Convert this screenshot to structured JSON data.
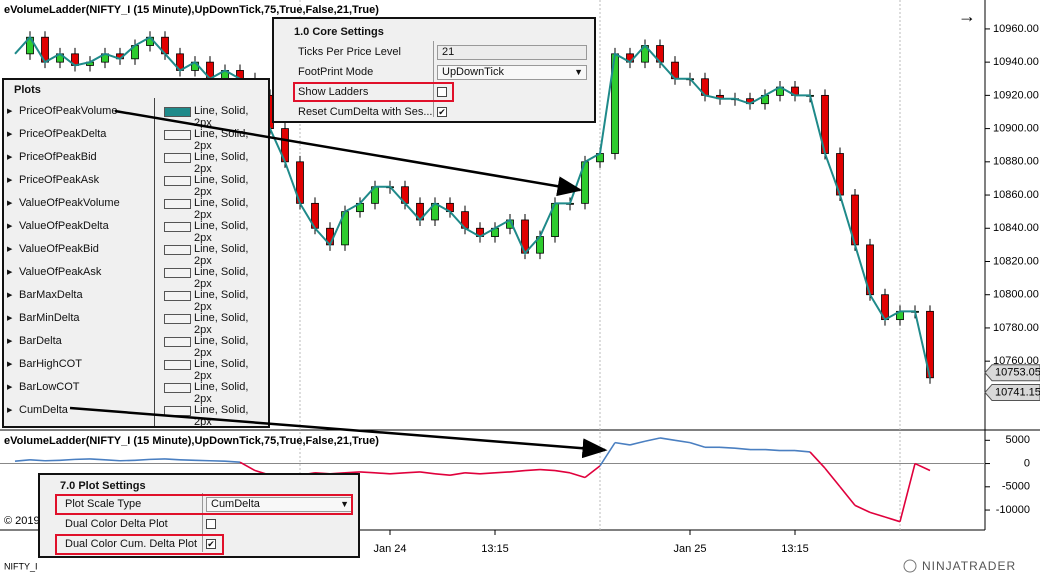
{
  "chart_data": {
    "type": "candlestick",
    "title": "eVolumeLadder(NIFTY_I (15 Minute),UpDownTick,75,True,False,21,True)",
    "categories": [
      null,
      null,
      null,
      null,
      null,
      null,
      null,
      null,
      null,
      null,
      null,
      null,
      null,
      null,
      null,
      null,
      null,
      null,
      null,
      null,
      null,
      null,
      null,
      null,
      null,
      "Jan 24",
      null,
      null,
      null,
      null,
      null,
      null,
      "13:15",
      null,
      null,
      null,
      null,
      null,
      null,
      null,
      null,
      null,
      null,
      null,
      null,
      "Jan 25",
      null,
      null,
      null,
      null,
      null,
      null,
      "13:15",
      null,
      null,
      null,
      null,
      null,
      null,
      null,
      null,
      null
    ],
    "close": [
      10945,
      10955,
      10940,
      10945,
      10938,
      10940,
      10945,
      10942,
      10950,
      10955,
      10945,
      10935,
      10940,
      10930,
      10935,
      10930,
      10920,
      10900,
      10880,
      10855,
      10840,
      10830,
      10850,
      10855,
      10865,
      10865,
      10855,
      10845,
      10855,
      10850,
      10840,
      10835,
      10840,
      10845,
      10825,
      10835,
      10855,
      10855,
      10880,
      10885,
      10945,
      10940,
      10950,
      10940,
      10930,
      10930,
      10920,
      10918,
      10918,
      10915,
      10920,
      10925,
      10920,
      10920,
      10885,
      10860,
      10830,
      10800,
      10785,
      10790,
      10790,
      10750
    ],
    "line_color": "#1f8a8a",
    "up_color": "#2ecc2e",
    "down_color": "#e00000",
    "ylim": [
      10730,
      10975
    ],
    "yticks": [
      {
        "value": 10960,
        "label": "10960.00"
      },
      {
        "value": 10940,
        "label": "10940.00"
      },
      {
        "value": 10920,
        "label": "10920.00"
      },
      {
        "value": 10900,
        "label": "10900.00"
      },
      {
        "value": 10880,
        "label": "10880.00"
      },
      {
        "value": 10860,
        "label": "10860.00"
      },
      {
        "value": 10840,
        "label": "10840.00"
      },
      {
        "value": 10820,
        "label": "10820.00"
      },
      {
        "value": 10800,
        "label": "10800.00"
      },
      {
        "value": 10780,
        "label": "10780.00"
      },
      {
        "value": 10760,
        "label": "10760.00"
      }
    ],
    "price_markers": [
      {
        "value": 10753.05,
        "label": "10753.05"
      },
      {
        "value": 10741.15,
        "label": "10741.15"
      }
    ],
    "lower_title": "eVolumeLadder(NIFTY_I (15 Minute),UpDownTick,75,True,False,21,True)",
    "cumdelta": [
      500,
      800,
      600,
      700,
      900,
      1000,
      800,
      600,
      700,
      900,
      1000,
      800,
      700,
      600,
      500,
      300,
      -1500,
      -2500,
      -3000,
      -2500,
      -2000,
      -2200,
      -2000,
      -1800,
      -2000,
      -2200,
      -2000,
      -1800,
      -2200,
      -2500,
      -2000,
      -2200,
      -2000,
      -1800,
      -1500,
      -1300,
      -1500,
      -2000,
      -3000,
      -500,
      4500,
      4000,
      4800,
      5500,
      5000,
      4500,
      3500,
      3500,
      3300,
      3000,
      3000,
      2800,
      2800,
      2500,
      -1000,
      -5000,
      -9000,
      -10500,
      -11500,
      -12500,
      0,
      -1500
    ],
    "pos_color": "#4a7fc1",
    "neg_color": "#e0003c",
    "y2lim": [
      -13000,
      7000
    ],
    "y2ticks": [
      5000,
      0,
      -5000,
      -10000
    ]
  },
  "footer": {
    "copyright": "© 2019",
    "instrument": "NIFTY_I",
    "logo": "NINJATRADER"
  },
  "core_settings": {
    "title": "1.0 Core Settings",
    "rows": [
      {
        "label": "Ticks Per Price Level",
        "control": "text",
        "value": "21"
      },
      {
        "label": "FootPrint Mode",
        "control": "dropdown",
        "value": "UpDownTick"
      },
      {
        "label": "Show Ladders",
        "control": "checkbox",
        "checked": false
      },
      {
        "label": "Reset CumDelta with Ses...",
        "control": "checkbox",
        "checked": true
      }
    ]
  },
  "plots": {
    "title": "Plots",
    "rows": [
      {
        "name": "PriceOfPeakVolume",
        "style": "Line, Solid, 2px",
        "color": "#1f8a8a"
      },
      {
        "name": "PriceOfPeakDelta",
        "style": "Line, Solid, 2px",
        "color": "#f4f4f4"
      },
      {
        "name": "PriceOfPeakBid",
        "style": "Line, Solid, 2px",
        "color": "#f4f4f4"
      },
      {
        "name": "PriceOfPeakAsk",
        "style": "Line, Solid, 2px",
        "color": "#f4f4f4"
      },
      {
        "name": "ValueOfPeakVolume",
        "style": "Line, Solid, 2px",
        "color": "#f4f4f4"
      },
      {
        "name": "ValueOfPeakDelta",
        "style": "Line, Solid, 2px",
        "color": "#f4f4f4"
      },
      {
        "name": "ValueOfPeakBid",
        "style": "Line, Solid, 2px",
        "color": "#f4f4f4"
      },
      {
        "name": "ValueOfPeakAsk",
        "style": "Line, Solid, 2px",
        "color": "#f4f4f4"
      },
      {
        "name": "BarMaxDelta",
        "style": "Line, Solid, 2px",
        "color": "#f4f4f4"
      },
      {
        "name": "BarMinDelta",
        "style": "Line, Solid, 2px",
        "color": "#f4f4f4"
      },
      {
        "name": "BarDelta",
        "style": "Line, Solid, 2px",
        "color": "#f4f4f4"
      },
      {
        "name": "BarHighCOT",
        "style": "Line, Solid, 2px",
        "color": "#f4f4f4"
      },
      {
        "name": "BarLowCOT",
        "style": "Line, Solid, 2px",
        "color": "#f4f4f4"
      },
      {
        "name": "CumDelta",
        "style": "Line, Solid, 2px",
        "color": "#f4f4f4"
      }
    ]
  },
  "plot_settings": {
    "title": "7.0 Plot Settings",
    "rows": [
      {
        "label": "Plot Scale Type",
        "control": "dropdown",
        "value": "CumDelta"
      },
      {
        "label": "Dual Color Delta Plot",
        "control": "checkbox",
        "checked": false
      },
      {
        "label": "Dual Color Cum. Delta Plot",
        "control": "checkbox",
        "checked": true
      }
    ]
  }
}
